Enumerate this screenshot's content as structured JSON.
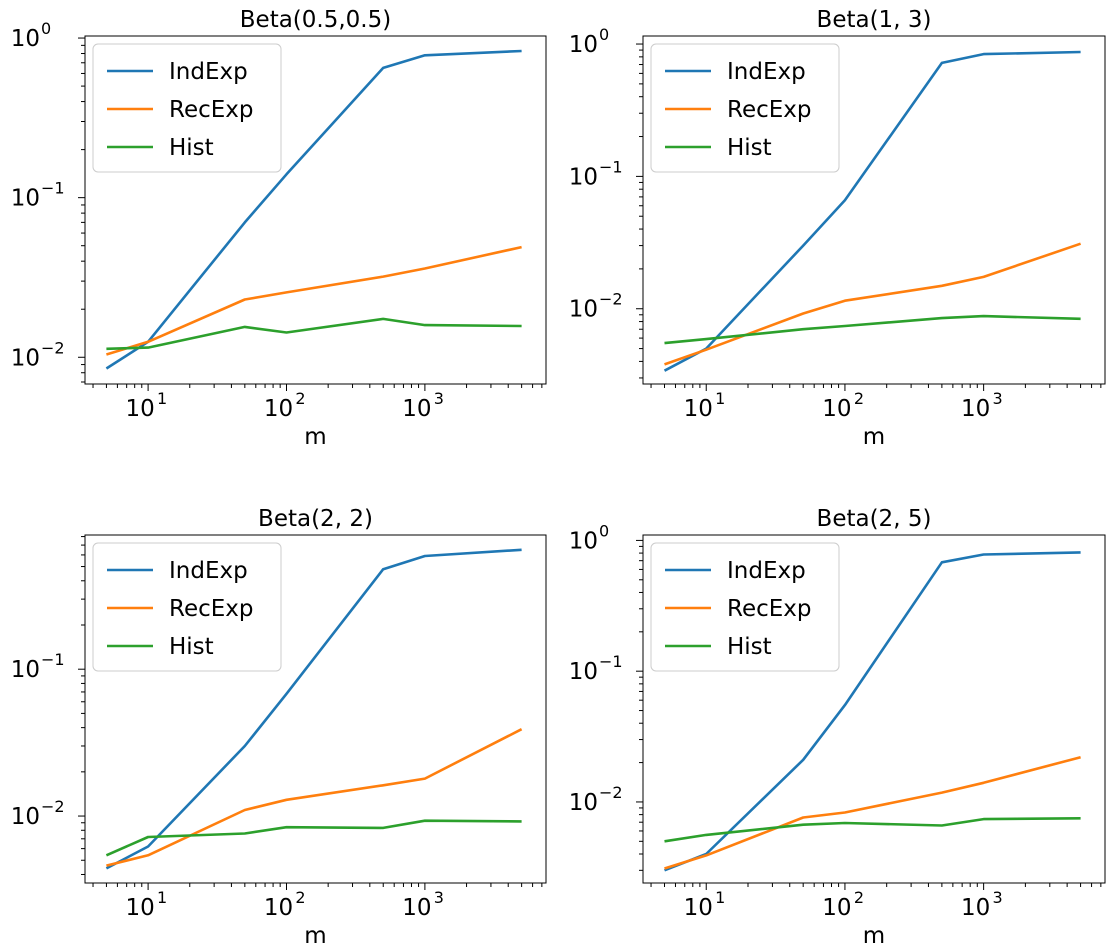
{
  "chart_data": [
    {
      "type": "line",
      "title": "Beta(0.5,0.5)",
      "xlabel": "m",
      "ylabel": "",
      "xscale": "log",
      "yscale": "log",
      "xlim": [
        3.5,
        7500
      ],
      "ylim": [
        0.0068,
        1.03
      ],
      "x": [
        5,
        10,
        50,
        100,
        500,
        1000,
        5000
      ],
      "xticks": [
        {
          "value": 10,
          "base": "10",
          "exp": "1"
        },
        {
          "value": 100,
          "base": "10",
          "exp": "2"
        },
        {
          "value": 1000,
          "base": "10",
          "exp": "3"
        }
      ],
      "yticks": [
        {
          "value": 0.01,
          "base": "10",
          "exp": "−2"
        },
        {
          "value": 0.1,
          "base": "10",
          "exp": "−1"
        },
        {
          "value": 1,
          "base": "10",
          "exp": "0"
        }
      ],
      "legend": "upper-left",
      "series": [
        {
          "name": "IndExp",
          "color": "#1f77b4",
          "values": [
            0.0085,
            0.0125,
            0.07,
            0.14,
            0.65,
            0.78,
            0.83
          ]
        },
        {
          "name": "RecExp",
          "color": "#ff7f0e",
          "values": [
            0.0104,
            0.0125,
            0.023,
            0.0255,
            0.032,
            0.036,
            0.049
          ]
        },
        {
          "name": "Hist",
          "color": "#2ca02c",
          "values": [
            0.0113,
            0.0115,
            0.0155,
            0.0143,
            0.0174,
            0.0159,
            0.0157
          ]
        }
      ]
    },
    {
      "type": "line",
      "title": "Beta(1, 3)",
      "xlabel": "m",
      "ylabel": "",
      "xscale": "log",
      "yscale": "log",
      "xlim": [
        3.5,
        7500
      ],
      "ylim": [
        0.0027,
        1.15
      ],
      "x": [
        5,
        10,
        50,
        100,
        500,
        1000,
        5000
      ],
      "xticks": [
        {
          "value": 10,
          "base": "10",
          "exp": "1"
        },
        {
          "value": 100,
          "base": "10",
          "exp": "2"
        },
        {
          "value": 1000,
          "base": "10",
          "exp": "3"
        }
      ],
      "yticks": [
        {
          "value": 0.01,
          "base": "10",
          "exp": "−2"
        },
        {
          "value": 0.1,
          "base": "10",
          "exp": "−1"
        },
        {
          "value": 1,
          "base": "10",
          "exp": "0"
        }
      ],
      "legend": "upper-left",
      "series": [
        {
          "name": "IndExp",
          "color": "#1f77b4",
          "values": [
            0.0034,
            0.005,
            0.03,
            0.066,
            0.72,
            0.84,
            0.87
          ]
        },
        {
          "name": "RecExp",
          "color": "#ff7f0e",
          "values": [
            0.0038,
            0.0049,
            0.0092,
            0.0115,
            0.0149,
            0.0174,
            0.031
          ]
        },
        {
          "name": "Hist",
          "color": "#2ca02c",
          "values": [
            0.0055,
            0.0059,
            0.007,
            0.0074,
            0.0085,
            0.0088,
            0.0084
          ]
        }
      ]
    },
    {
      "type": "line",
      "title": "Beta(2, 2)",
      "xlabel": "m",
      "ylabel": "",
      "xscale": "log",
      "yscale": "log",
      "xlim": [
        3.5,
        7500
      ],
      "ylim": [
        0.0035,
        0.82
      ],
      "x": [
        5,
        10,
        50,
        100,
        500,
        1000,
        5000
      ],
      "xticks": [
        {
          "value": 10,
          "base": "10",
          "exp": "1"
        },
        {
          "value": 100,
          "base": "10",
          "exp": "2"
        },
        {
          "value": 1000,
          "base": "10",
          "exp": "3"
        }
      ],
      "yticks": [
        {
          "value": 0.01,
          "base": "10",
          "exp": "−2"
        },
        {
          "value": 0.1,
          "base": "10",
          "exp": "−1"
        }
      ],
      "legend": "upper-left",
      "series": [
        {
          "name": "IndExp",
          "color": "#1f77b4",
          "values": [
            0.0044,
            0.0062,
            0.03,
            0.068,
            0.48,
            0.59,
            0.65
          ]
        },
        {
          "name": "RecExp",
          "color": "#ff7f0e",
          "values": [
            0.0046,
            0.0054,
            0.011,
            0.0129,
            0.0162,
            0.018,
            0.039
          ]
        },
        {
          "name": "Hist",
          "color": "#2ca02c",
          "values": [
            0.0054,
            0.0072,
            0.0076,
            0.0084,
            0.0083,
            0.0093,
            0.0092
          ]
        }
      ]
    },
    {
      "type": "line",
      "title": "Beta(2, 5)",
      "xlabel": "m",
      "ylabel": "",
      "xscale": "log",
      "yscale": "log",
      "xlim": [
        3.5,
        7500
      ],
      "ylim": [
        0.0024,
        1.1
      ],
      "x": [
        5,
        10,
        50,
        100,
        500,
        1000,
        5000
      ],
      "xticks": [
        {
          "value": 10,
          "base": "10",
          "exp": "1"
        },
        {
          "value": 100,
          "base": "10",
          "exp": "2"
        },
        {
          "value": 1000,
          "base": "10",
          "exp": "3"
        }
      ],
      "yticks": [
        {
          "value": 0.01,
          "base": "10",
          "exp": "−2"
        },
        {
          "value": 0.1,
          "base": "10",
          "exp": "−1"
        },
        {
          "value": 1,
          "base": "10",
          "exp": "0"
        }
      ],
      "legend": "upper-left",
      "series": [
        {
          "name": "IndExp",
          "color": "#1f77b4",
          "values": [
            0.003,
            0.004,
            0.021,
            0.055,
            0.68,
            0.78,
            0.81
          ]
        },
        {
          "name": "RecExp",
          "color": "#ff7f0e",
          "values": [
            0.0031,
            0.0039,
            0.0076,
            0.0083,
            0.0118,
            0.014,
            0.022
          ]
        },
        {
          "name": "Hist",
          "color": "#2ca02c",
          "values": [
            0.005,
            0.0056,
            0.0067,
            0.0069,
            0.0066,
            0.0074,
            0.0075
          ]
        }
      ]
    }
  ]
}
